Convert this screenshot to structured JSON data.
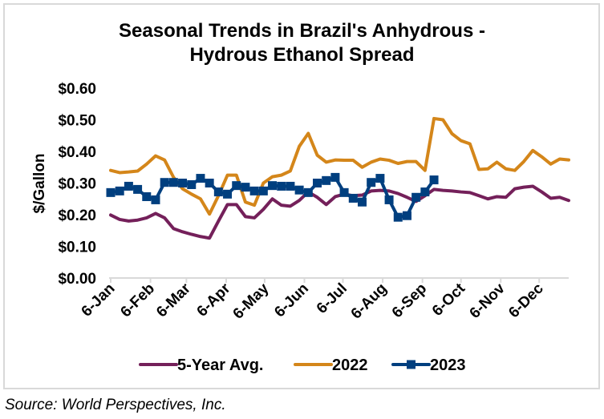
{
  "chart_data": {
    "type": "line",
    "title": "Seasonal Trends in Brazil's Anhydrous - Hydrous Ethanol Spread",
    "title_lines": [
      "Seasonal Trends in Brazil's Anhydrous -",
      "Hydrous Ethanol Spread"
    ],
    "xlabel": "",
    "ylabel": "$/Gallon",
    "ylim": [
      0,
      0.6
    ],
    "yticks": [
      0.0,
      0.1,
      0.2,
      0.3,
      0.4,
      0.5,
      0.6
    ],
    "ytick_labels": [
      "$0.00",
      "$0.10",
      "$0.20",
      "$0.30",
      "$0.40",
      "$0.50",
      "$0.60"
    ],
    "x_unit": "days since 6-Jan",
    "xlim": [
      0,
      357
    ],
    "xticks": [
      0,
      31,
      59,
      90,
      120,
      151,
      181,
      212,
      243,
      273,
      304,
      334
    ],
    "xtick_labels": [
      "6-Jan",
      "6-Feb",
      "6-Mar",
      "6-Apr",
      "6-May",
      "6-Jun",
      "6-Jul",
      "6-Aug",
      "6-Sep",
      "6-Oct",
      "6-Nov",
      "6-Dec"
    ],
    "x_step_days": 7,
    "grid": false,
    "legend_position": "bottom",
    "series": [
      {
        "name": "5-Year Avg.",
        "color": "#74205A",
        "marker": "none",
        "values": [
          0.199,
          0.185,
          0.18,
          0.183,
          0.19,
          0.204,
          0.19,
          0.156,
          0.146,
          0.138,
          0.131,
          0.126,
          0.18,
          0.232,
          0.232,
          0.194,
          0.19,
          0.217,
          0.25,
          0.23,
          0.227,
          0.245,
          0.272,
          0.255,
          0.232,
          0.257,
          0.265,
          0.26,
          0.262,
          0.275,
          0.277,
          0.275,
          0.267,
          0.255,
          0.242,
          0.26,
          0.28,
          0.277,
          0.275,
          0.272,
          0.27,
          0.26,
          0.25,
          0.257,
          0.255,
          0.282,
          0.287,
          0.29,
          0.272,
          0.252,
          0.255,
          0.245
        ]
      },
      {
        "name": "2022",
        "color": "#D4861A",
        "marker": "none",
        "values": [
          0.34,
          0.333,
          0.335,
          0.338,
          0.36,
          0.386,
          0.373,
          0.318,
          0.282,
          0.265,
          0.25,
          0.202,
          0.26,
          0.325,
          0.325,
          0.24,
          0.23,
          0.3,
          0.32,
          0.325,
          0.338,
          0.416,
          0.457,
          0.388,
          0.366,
          0.373,
          0.372,
          0.372,
          0.35,
          0.366,
          0.376,
          0.372,
          0.362,
          0.368,
          0.368,
          0.34,
          0.504,
          0.5,
          0.456,
          0.434,
          0.424,
          0.343,
          0.345,
          0.366,
          0.345,
          0.34,
          0.368,
          0.403,
          0.383,
          0.36,
          0.376,
          0.373
        ]
      },
      {
        "name": "2023",
        "color": "#003F7F",
        "marker": "square",
        "values": [
          0.27,
          0.275,
          0.29,
          0.28,
          0.257,
          0.247,
          0.302,
          0.302,
          0.3,
          0.295,
          0.315,
          0.3,
          0.272,
          0.265,
          0.292,
          0.287,
          0.275,
          0.275,
          0.292,
          0.29,
          0.29,
          0.278,
          0.27,
          0.3,
          0.308,
          0.318,
          0.27,
          0.252,
          0.24,
          0.302,
          0.315,
          0.247,
          0.192,
          0.197,
          0.255,
          0.272,
          0.31
        ]
      }
    ]
  },
  "source": "Source: World Perspectives, Inc."
}
